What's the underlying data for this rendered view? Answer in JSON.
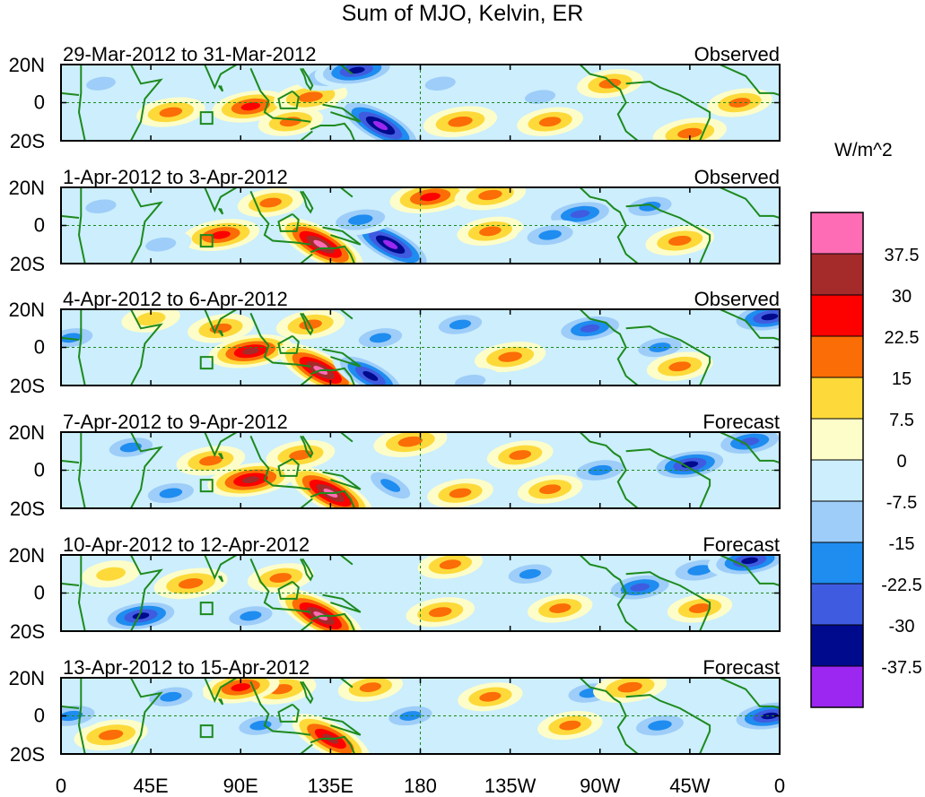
{
  "title": "Sum of MJO, Kelvin, ER",
  "colorbar": {
    "unit": "W/m^2",
    "colors": [
      "#9b27f0",
      "#000a8c",
      "#3f5ce0",
      "#1f8cf0",
      "#9dcdf8",
      "#cceefd",
      "#fdfdc9",
      "#fdda3a",
      "#fb6d06",
      "#fd0000",
      "#a52a2a",
      "#fd6cb4"
    ],
    "tick_labels": [
      "-37.5",
      "-30",
      "-22.5",
      "-15",
      "-7.5",
      "0",
      "7.5",
      "15",
      "22.5",
      "30",
      "37.5"
    ],
    "levels": [
      -37.5,
      -30,
      -22.5,
      -15,
      -7.5,
      0,
      7.5,
      15,
      22.5,
      30,
      37.5
    ]
  },
  "x_tick_labels": [
    "0",
    "45E",
    "90E",
    "135E",
    "180",
    "135W",
    "90W",
    "45W",
    "0"
  ],
  "y_tick_labels": [
    "20N",
    "0",
    "20S"
  ],
  "panels": [
    {
      "date_range": "29-Mar-2012 to 31-Mar-2012",
      "label": "Observed"
    },
    {
      "date_range": "1-Apr-2012 to 3-Apr-2012",
      "label": "Observed"
    },
    {
      "date_range": "4-Apr-2012 to 6-Apr-2012",
      "label": "Observed"
    },
    {
      "date_range": "7-Apr-2012 to 9-Apr-2012",
      "label": "Forecast"
    },
    {
      "date_range": "10-Apr-2012 to 12-Apr-2012",
      "label": "Forecast"
    },
    {
      "date_range": "13-Apr-2012 to 15-Apr-2012",
      "label": "Forecast"
    }
  ],
  "chart_data": {
    "type": "heatmap",
    "title": "Sum of MJO, Kelvin, ER",
    "x_axis": {
      "ticks": [
        "0",
        "45E",
        "90E",
        "135E",
        "180",
        "135W",
        "90W",
        "45W",
        "0"
      ],
      "range_deg": [
        0,
        360
      ]
    },
    "y_axis": {
      "ticks": [
        "20N",
        "0",
        "20S"
      ],
      "range_deg": [
        -20,
        20
      ]
    },
    "units": "W/m^2",
    "panels": [
      {
        "date_range": "29-Mar-2012 to 31-Mar-2012",
        "label": "Observed",
        "features": [
          {
            "lon": 95,
            "lat": -2,
            "value": 25
          },
          {
            "lon": 55,
            "lat": -5,
            "value": 18
          },
          {
            "lon": 125,
            "lat": 3,
            "value": 22
          },
          {
            "lon": 115,
            "lat": -10,
            "value": 15
          },
          {
            "lon": 160,
            "lat": -12,
            "value": -40
          },
          {
            "lon": 135,
            "lat": 14,
            "value": -18
          },
          {
            "lon": 148,
            "lat": 17,
            "value": -30
          },
          {
            "lon": 200,
            "lat": -10,
            "value": 22
          },
          {
            "lon": 190,
            "lat": 10,
            "value": -12
          },
          {
            "lon": 240,
            "lat": 3,
            "value": -12
          },
          {
            "lon": 275,
            "lat": 10,
            "value": 16
          },
          {
            "lon": 315,
            "lat": -16,
            "value": 22
          },
          {
            "lon": 340,
            "lat": 0,
            "value": 15
          },
          {
            "lon": 20,
            "lat": 10,
            "value": -10
          },
          {
            "lon": 245,
            "lat": -10,
            "value": 16
          }
        ]
      },
      {
        "date_range": "1-Apr-2012 to 3-Apr-2012",
        "label": "Observed",
        "features": [
          {
            "lon": 80,
            "lat": -5,
            "value": 25
          },
          {
            "lon": 130,
            "lat": -10,
            "value": 38
          },
          {
            "lon": 165,
            "lat": -10,
            "value": -40
          },
          {
            "lon": 150,
            "lat": 3,
            "value": -22
          },
          {
            "lon": 185,
            "lat": 15,
            "value": 28
          },
          {
            "lon": 215,
            "lat": 16,
            "value": 20
          },
          {
            "lon": 215,
            "lat": -3,
            "value": 16
          },
          {
            "lon": 260,
            "lat": 6,
            "value": -25
          },
          {
            "lon": 245,
            "lat": -5,
            "value": -18
          },
          {
            "lon": 295,
            "lat": 10,
            "value": -15
          },
          {
            "lon": 310,
            "lat": -8,
            "value": 18
          },
          {
            "lon": 105,
            "lat": 12,
            "value": 16
          },
          {
            "lon": 20,
            "lat": 10,
            "value": -12
          },
          {
            "lon": 50,
            "lat": -10,
            "value": -12
          }
        ]
      },
      {
        "date_range": "4-Apr-2012 to 6-Apr-2012",
        "label": "Observed",
        "features": [
          {
            "lon": 95,
            "lat": -2,
            "value": 30
          },
          {
            "lon": 130,
            "lat": -12,
            "value": 38
          },
          {
            "lon": 80,
            "lat": 10,
            "value": 16
          },
          {
            "lon": 125,
            "lat": 12,
            "value": 18
          },
          {
            "lon": 155,
            "lat": -15,
            "value": -30
          },
          {
            "lon": 160,
            "lat": 5,
            "value": -15
          },
          {
            "lon": 200,
            "lat": 12,
            "value": -15
          },
          {
            "lon": 225,
            "lat": -5,
            "value": 20
          },
          {
            "lon": 265,
            "lat": 10,
            "value": -25
          },
          {
            "lon": 300,
            "lat": 0,
            "value": -15
          },
          {
            "lon": 310,
            "lat": -10,
            "value": 16
          },
          {
            "lon": 355,
            "lat": 16,
            "value": -30
          },
          {
            "lon": 45,
            "lat": 15,
            "value": 10
          },
          {
            "lon": 5,
            "lat": 5,
            "value": -15
          },
          {
            "lon": 205,
            "lat": -18,
            "value": -12
          }
        ]
      },
      {
        "date_range": "7-Apr-2012 to 9-Apr-2012",
        "label": "Forecast",
        "features": [
          {
            "lon": 95,
            "lat": -5,
            "value": 32
          },
          {
            "lon": 135,
            "lat": -12,
            "value": 38
          },
          {
            "lon": 75,
            "lat": 5,
            "value": 18
          },
          {
            "lon": 120,
            "lat": 8,
            "value": 18
          },
          {
            "lon": 175,
            "lat": 15,
            "value": 22
          },
          {
            "lon": 230,
            "lat": 8,
            "value": 16
          },
          {
            "lon": 165,
            "lat": -8,
            "value": -15
          },
          {
            "lon": 35,
            "lat": 12,
            "value": -15
          },
          {
            "lon": 55,
            "lat": -12,
            "value": -18
          },
          {
            "lon": 270,
            "lat": 0,
            "value": -20
          },
          {
            "lon": 315,
            "lat": 3,
            "value": -30
          },
          {
            "lon": 345,
            "lat": 15,
            "value": -25
          },
          {
            "lon": 200,
            "lat": -12,
            "value": 16
          },
          {
            "lon": 245,
            "lat": -10,
            "value": 15
          }
        ]
      },
      {
        "date_range": "10-Apr-2012 to 12-Apr-2012",
        "label": "Forecast",
        "features": [
          {
            "lon": 65,
            "lat": 5,
            "value": 22
          },
          {
            "lon": 130,
            "lat": -12,
            "value": 38
          },
          {
            "lon": 110,
            "lat": 8,
            "value": 16
          },
          {
            "lon": 40,
            "lat": -12,
            "value": -30
          },
          {
            "lon": 95,
            "lat": -12,
            "value": -15
          },
          {
            "lon": 25,
            "lat": 10,
            "value": 10
          },
          {
            "lon": 195,
            "lat": 15,
            "value": 15
          },
          {
            "lon": 190,
            "lat": -10,
            "value": 18
          },
          {
            "lon": 235,
            "lat": 10,
            "value": -15
          },
          {
            "lon": 250,
            "lat": -8,
            "value": 15
          },
          {
            "lon": 290,
            "lat": 3,
            "value": -25
          },
          {
            "lon": 320,
            "lat": 12,
            "value": -22
          },
          {
            "lon": 345,
            "lat": 17,
            "value": -30
          },
          {
            "lon": 320,
            "lat": -8,
            "value": 15
          }
        ]
      },
      {
        "date_range": "13-Apr-2012 to 15-Apr-2012",
        "label": "Forecast",
        "features": [
          {
            "lon": 135,
            "lat": -12,
            "value": 32
          },
          {
            "lon": 110,
            "lat": 14,
            "value": 20
          },
          {
            "lon": 90,
            "lat": 15,
            "value": 25
          },
          {
            "lon": 25,
            "lat": -10,
            "value": 22
          },
          {
            "lon": 55,
            "lat": 10,
            "value": -15
          },
          {
            "lon": 100,
            "lat": -5,
            "value": -15
          },
          {
            "lon": 5,
            "lat": 0,
            "value": -20
          },
          {
            "lon": 175,
            "lat": 0,
            "value": -15
          },
          {
            "lon": 215,
            "lat": 10,
            "value": 15
          },
          {
            "lon": 255,
            "lat": -5,
            "value": 15
          },
          {
            "lon": 265,
            "lat": 12,
            "value": -15
          },
          {
            "lon": 285,
            "lat": 15,
            "value": 22
          },
          {
            "lon": 300,
            "lat": -5,
            "value": -20
          },
          {
            "lon": 355,
            "lat": 0,
            "value": -30
          },
          {
            "lon": 155,
            "lat": 15,
            "value": 15
          }
        ]
      }
    ]
  }
}
